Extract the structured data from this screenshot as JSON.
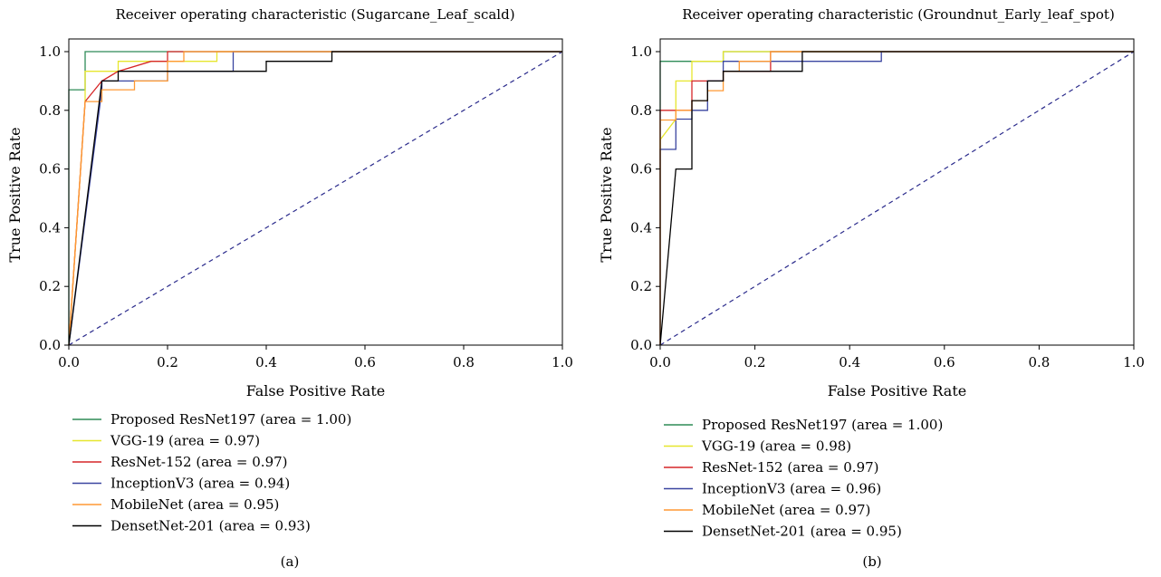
{
  "chart_data": [
    {
      "type": "line",
      "panel_label": "(a)",
      "title": "Receiver operating characteristic (Sugarcane_Leaf_scald)",
      "xlabel": "False Positive Rate",
      "ylabel": "True Positive Rate",
      "xlim": [
        0.0,
        1.0
      ],
      "ylim": [
        0.0,
        1.0
      ],
      "xticks": [
        "0.0",
        "0.2",
        "0.4",
        "0.6",
        "0.8",
        "1.0"
      ],
      "yticks": [
        "0.0",
        "0.2",
        "0.4",
        "0.6",
        "0.8",
        "1.0"
      ],
      "grid": false,
      "legend_position": "below",
      "diagonal": {
        "style": "dashed",
        "color": "#2b2b8c"
      },
      "series": [
        {
          "name": "Proposed ResNet197 (area = 1.00)",
          "color": "#2e8b57",
          "x": [
            0.0,
            0.0,
            0.033,
            0.033,
            1.0
          ],
          "y": [
            0.0,
            0.87,
            0.87,
            1.0,
            1.0
          ]
        },
        {
          "name": "VGG-19 (area = 0.97)",
          "color": "#e6e62e",
          "x": [
            0.0,
            0.033,
            0.033,
            0.1,
            0.1,
            0.2,
            0.2,
            0.3,
            0.3,
            1.0
          ],
          "y": [
            0.0,
            0.83,
            0.933,
            0.933,
            0.967,
            0.967,
            0.967,
            0.967,
            1.0,
            1.0
          ]
        },
        {
          "name": "ResNet-152 (area = 0.97)",
          "color": "#d62728",
          "x": [
            0.0,
            0.033,
            0.067,
            0.067,
            0.1,
            0.1,
            0.167,
            0.167,
            0.2,
            0.2,
            1.0
          ],
          "y": [
            0.0,
            0.83,
            0.9,
            0.9,
            0.933,
            0.933,
            0.967,
            0.967,
            0.967,
            1.0,
            1.0
          ]
        },
        {
          "name": "InceptionV3 (area = 0.94)",
          "color": "#3a45a0",
          "x": [
            0.0,
            0.067,
            0.067,
            0.1,
            0.1,
            0.2,
            0.2,
            0.333,
            0.333,
            1.0
          ],
          "y": [
            0.0,
            0.87,
            0.9,
            0.9,
            0.9,
            0.9,
            0.933,
            0.933,
            1.0,
            1.0
          ]
        },
        {
          "name": "MobileNet (area = 0.95)",
          "color": "#ff9933",
          "x": [
            0.0,
            0.033,
            0.067,
            0.067,
            0.133,
            0.133,
            0.2,
            0.2,
            0.233,
            0.233,
            1.0
          ],
          "y": [
            0.0,
            0.83,
            0.83,
            0.87,
            0.87,
            0.9,
            0.9,
            0.967,
            0.967,
            1.0,
            1.0
          ]
        },
        {
          "name": "DensetNet-201 (area = 0.93)",
          "color": "#000000",
          "x": [
            0.0,
            0.067,
            0.1,
            0.1,
            0.233,
            0.233,
            0.4,
            0.4,
            0.533,
            0.533,
            1.0
          ],
          "y": [
            0.0,
            0.9,
            0.9,
            0.933,
            0.933,
            0.933,
            0.933,
            0.967,
            0.967,
            1.0,
            1.0
          ]
        }
      ]
    },
    {
      "type": "line",
      "panel_label": "(b)",
      "title": "Receiver operating characteristic (Groundnut_Early_leaf_spot)",
      "xlabel": "False Positive Rate",
      "ylabel": "True Positive Rate",
      "xlim": [
        0.0,
        1.0
      ],
      "ylim": [
        0.0,
        1.0
      ],
      "xticks": [
        "0.0",
        "0.2",
        "0.4",
        "0.6",
        "0.8",
        "1.0"
      ],
      "yticks": [
        "0.0",
        "0.2",
        "0.4",
        "0.6",
        "0.8",
        "1.0"
      ],
      "grid": false,
      "legend_position": "below",
      "diagonal": {
        "style": "dashed",
        "color": "#2b2b8c"
      },
      "series": [
        {
          "name": "Proposed ResNet197 (area = 1.00)",
          "color": "#2e8b57",
          "x": [
            0.0,
            0.0,
            0.133,
            0.133,
            1.0
          ],
          "y": [
            0.0,
            0.967,
            0.967,
            1.0,
            1.0
          ]
        },
        {
          "name": "VGG-19 (area = 0.98)",
          "color": "#e6e62e",
          "x": [
            0.0,
            0.0,
            0.033,
            0.033,
            0.067,
            0.067,
            0.133,
            0.133,
            1.0
          ],
          "y": [
            0.0,
            0.7,
            0.77,
            0.9,
            0.9,
            0.967,
            0.967,
            1.0,
            1.0
          ]
        },
        {
          "name": "ResNet-152 (area = 0.97)",
          "color": "#d62728",
          "x": [
            0.0,
            0.0,
            0.033,
            0.033,
            0.067,
            0.067,
            0.133,
            0.133,
            0.233,
            0.233,
            1.0
          ],
          "y": [
            0.0,
            0.8,
            0.8,
            0.8,
            0.8,
            0.9,
            0.9,
            0.933,
            0.933,
            1.0,
            1.0
          ]
        },
        {
          "name": "InceptionV3 (area = 0.96)",
          "color": "#3a45a0",
          "x": [
            0.0,
            0.0,
            0.033,
            0.033,
            0.067,
            0.067,
            0.1,
            0.1,
            0.133,
            0.133,
            0.467,
            0.467,
            1.0
          ],
          "y": [
            0.0,
            0.667,
            0.667,
            0.77,
            0.77,
            0.8,
            0.8,
            0.9,
            0.9,
            0.967,
            0.967,
            1.0,
            1.0
          ]
        },
        {
          "name": "MobileNet (area = 0.97)",
          "color": "#ff9933",
          "x": [
            0.0,
            0.0,
            0.033,
            0.033,
            0.067,
            0.067,
            0.1,
            0.1,
            0.133,
            0.133,
            0.167,
            0.167,
            0.233,
            0.233,
            0.3,
            0.3,
            1.0
          ],
          "y": [
            0.0,
            0.767,
            0.767,
            0.8,
            0.8,
            0.833,
            0.833,
            0.867,
            0.867,
            0.933,
            0.933,
            0.967,
            0.967,
            1.0,
            1.0,
            1.0,
            1.0
          ]
        },
        {
          "name": "DensetNet-201 (area = 0.95)",
          "color": "#000000",
          "x": [
            0.0,
            0.033,
            0.033,
            0.067,
            0.067,
            0.1,
            0.1,
            0.133,
            0.133,
            0.3,
            0.3,
            1.0
          ],
          "y": [
            0.0,
            0.6,
            0.6,
            0.6,
            0.833,
            0.833,
            0.9,
            0.9,
            0.933,
            0.933,
            1.0,
            1.0
          ]
        }
      ]
    }
  ]
}
